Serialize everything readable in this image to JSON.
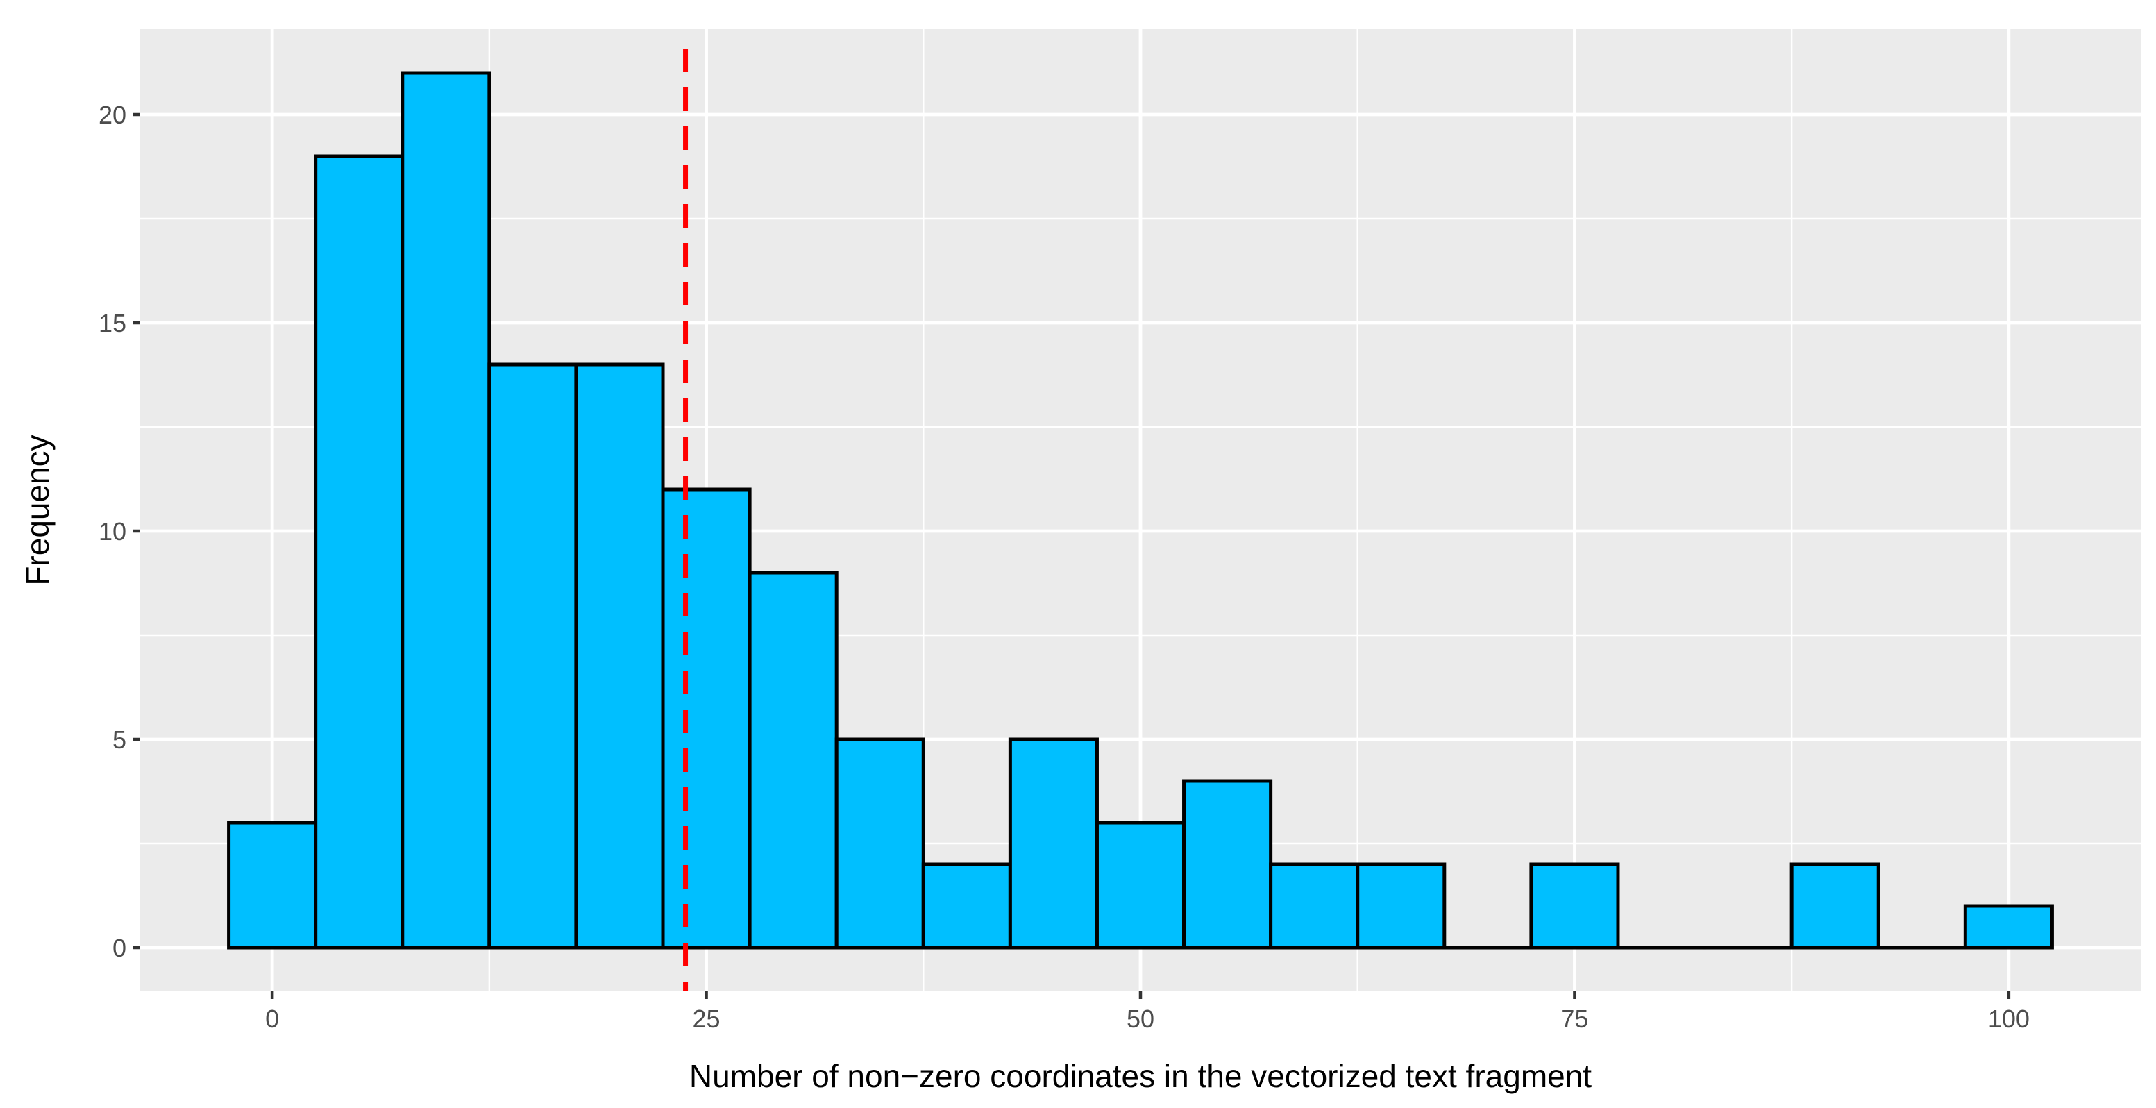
{
  "chart_data": {
    "type": "bar",
    "title": "",
    "xlabel": "Number of non−zero coordinates in the vectorized text fragment",
    "ylabel": "Frequency",
    "bin_width": 5,
    "bins": [
      {
        "x": 0,
        "count": 3
      },
      {
        "x": 5,
        "count": 19
      },
      {
        "x": 10,
        "count": 21
      },
      {
        "x": 15,
        "count": 14
      },
      {
        "x": 20,
        "count": 14
      },
      {
        "x": 25,
        "count": 11
      },
      {
        "x": 30,
        "count": 9
      },
      {
        "x": 35,
        "count": 5
      },
      {
        "x": 40,
        "count": 2
      },
      {
        "x": 45,
        "count": 5
      },
      {
        "x": 50,
        "count": 3
      },
      {
        "x": 55,
        "count": 4
      },
      {
        "x": 60,
        "count": 2
      },
      {
        "x": 65,
        "count": 2
      },
      {
        "x": 70,
        "count": 0
      },
      {
        "x": 75,
        "count": 2
      },
      {
        "x": 80,
        "count": 0
      },
      {
        "x": 85,
        "count": 0
      },
      {
        "x": 90,
        "count": 2
      },
      {
        "x": 95,
        "count": 0
      },
      {
        "x": 100,
        "count": 1
      }
    ],
    "vline": {
      "x": 23.8,
      "color": "#ff0000",
      "style": "dashed"
    },
    "xlim": [
      -7.6,
      107.6
    ],
    "ylim": [
      -1.05,
      22.05
    ],
    "xticks": [
      0,
      25,
      50,
      75,
      100
    ],
    "xtick_labels": [
      "0",
      "25",
      "50",
      "75",
      "100"
    ],
    "yticks": [
      0,
      5,
      10,
      15,
      20
    ],
    "ytick_labels": [
      "0",
      "5",
      "10",
      "15",
      "20"
    ],
    "grid": true,
    "colors": {
      "bar_fill": "#00bfff",
      "bar_stroke": "#000000",
      "panel_background": "#ebebeb",
      "grid": "#ffffff"
    }
  }
}
